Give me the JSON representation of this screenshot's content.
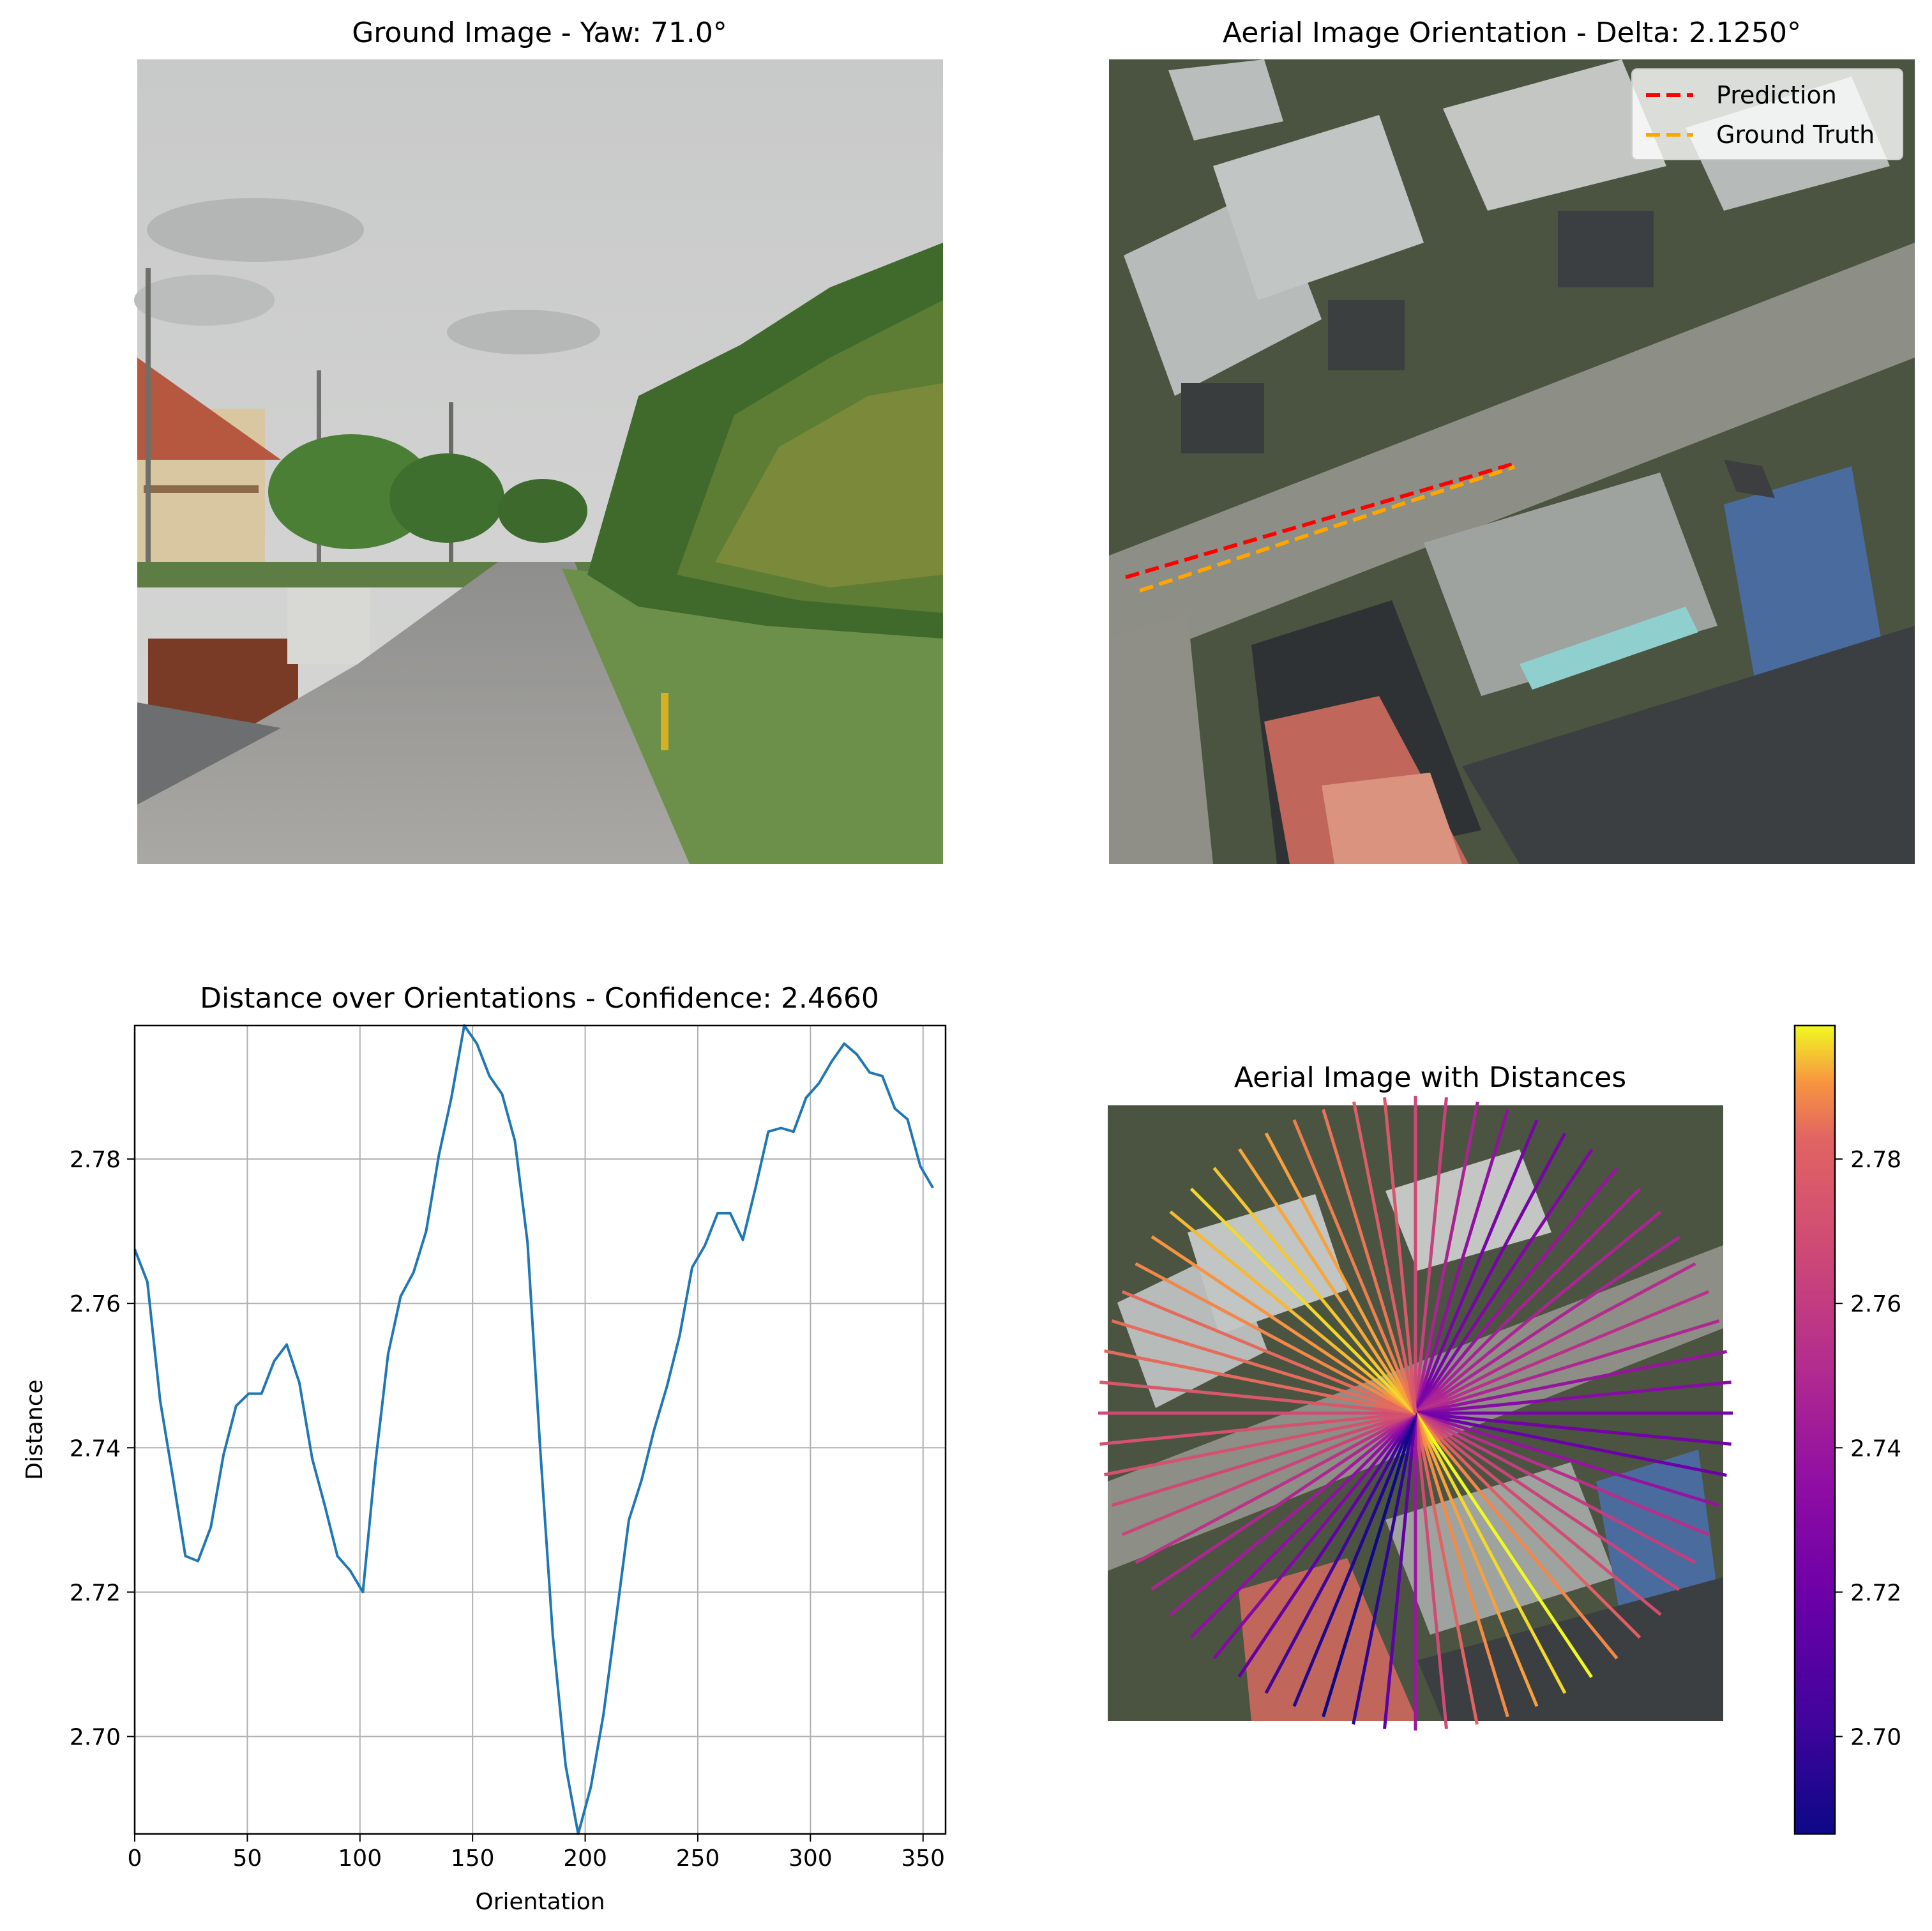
{
  "panels": {
    "ground": {
      "title": "Ground Image - Yaw: 71.0°"
    },
    "aerial": {
      "title": "Aerial Image Orientation - Delta: 2.1250°",
      "legend": [
        {
          "label": "Prediction",
          "color": "#ff0000",
          "style": "dashed"
        },
        {
          "label": "Ground Truth",
          "color": "#ffa500",
          "style": "dashed"
        }
      ]
    },
    "radial": {
      "title": "Aerial Image with Distances"
    }
  },
  "chart_data": [
    {
      "type": "line",
      "title": "Distance over Orientations - Confidence: 2.4660",
      "xlabel": "Orientation",
      "ylabel": "Distance",
      "xlim": [
        0,
        360
      ],
      "ylim": [
        2.6865,
        2.7985
      ],
      "grid": true,
      "xticks": [
        0,
        50,
        100,
        150,
        200,
        250,
        300,
        350
      ],
      "yticks": [
        2.7,
        2.72,
        2.74,
        2.76,
        2.78
      ],
      "series": [
        {
          "color": "#1f77b4",
          "x": [
            0,
            5.6,
            11.3,
            16.9,
            22.5,
            28.1,
            33.8,
            39.4,
            45,
            50.6,
            56.3,
            61.9,
            67.5,
            73.1,
            78.8,
            84.4,
            90,
            95.6,
            101.3,
            106.9,
            112.5,
            118.1,
            123.8,
            129.4,
            135,
            140.6,
            146.3,
            151.9,
            157.5,
            163.1,
            168.8,
            174.4,
            180,
            185.6,
            191.3,
            196.9,
            202.5,
            208.1,
            213.8,
            219.4,
            225,
            230.6,
            236.3,
            241.9,
            247.5,
            253.1,
            258.8,
            264.4,
            270,
            275.6,
            281.3,
            286.9,
            292.5,
            298.1,
            303.8,
            309.4,
            315,
            320.6,
            326.3,
            331.9,
            337.5,
            343.1,
            348.8,
            354.4
          ],
          "y": [
            2.7675,
            2.763,
            2.7465,
            2.736,
            2.725,
            2.7243,
            2.729,
            2.739,
            2.7458,
            2.7475,
            2.7475,
            2.752,
            2.7543,
            2.749,
            2.7385,
            2.732,
            2.725,
            2.723,
            2.72,
            2.738,
            2.753,
            2.761,
            2.7643,
            2.77,
            2.7805,
            2.7885,
            2.7985,
            2.796,
            2.7915,
            2.789,
            2.7825,
            2.7685,
            2.74,
            2.714,
            2.696,
            2.6865,
            2.693,
            2.703,
            2.7165,
            2.73,
            2.7355,
            2.7425,
            2.7485,
            2.7555,
            2.765,
            2.768,
            2.7725,
            2.7725,
            2.7688,
            2.776,
            2.7838,
            2.7843,
            2.7838,
            2.7885,
            2.7905,
            2.7935,
            2.796,
            2.7945,
            2.792,
            2.7915,
            2.787,
            2.7855,
            2.779,
            2.776
          ]
        }
      ]
    },
    {
      "type": "colorbar",
      "colormap": "plasma",
      "ylim": [
        2.6865,
        2.7985
      ],
      "ticks": [
        2.7,
        2.72,
        2.74,
        2.76,
        2.78
      ]
    }
  ]
}
